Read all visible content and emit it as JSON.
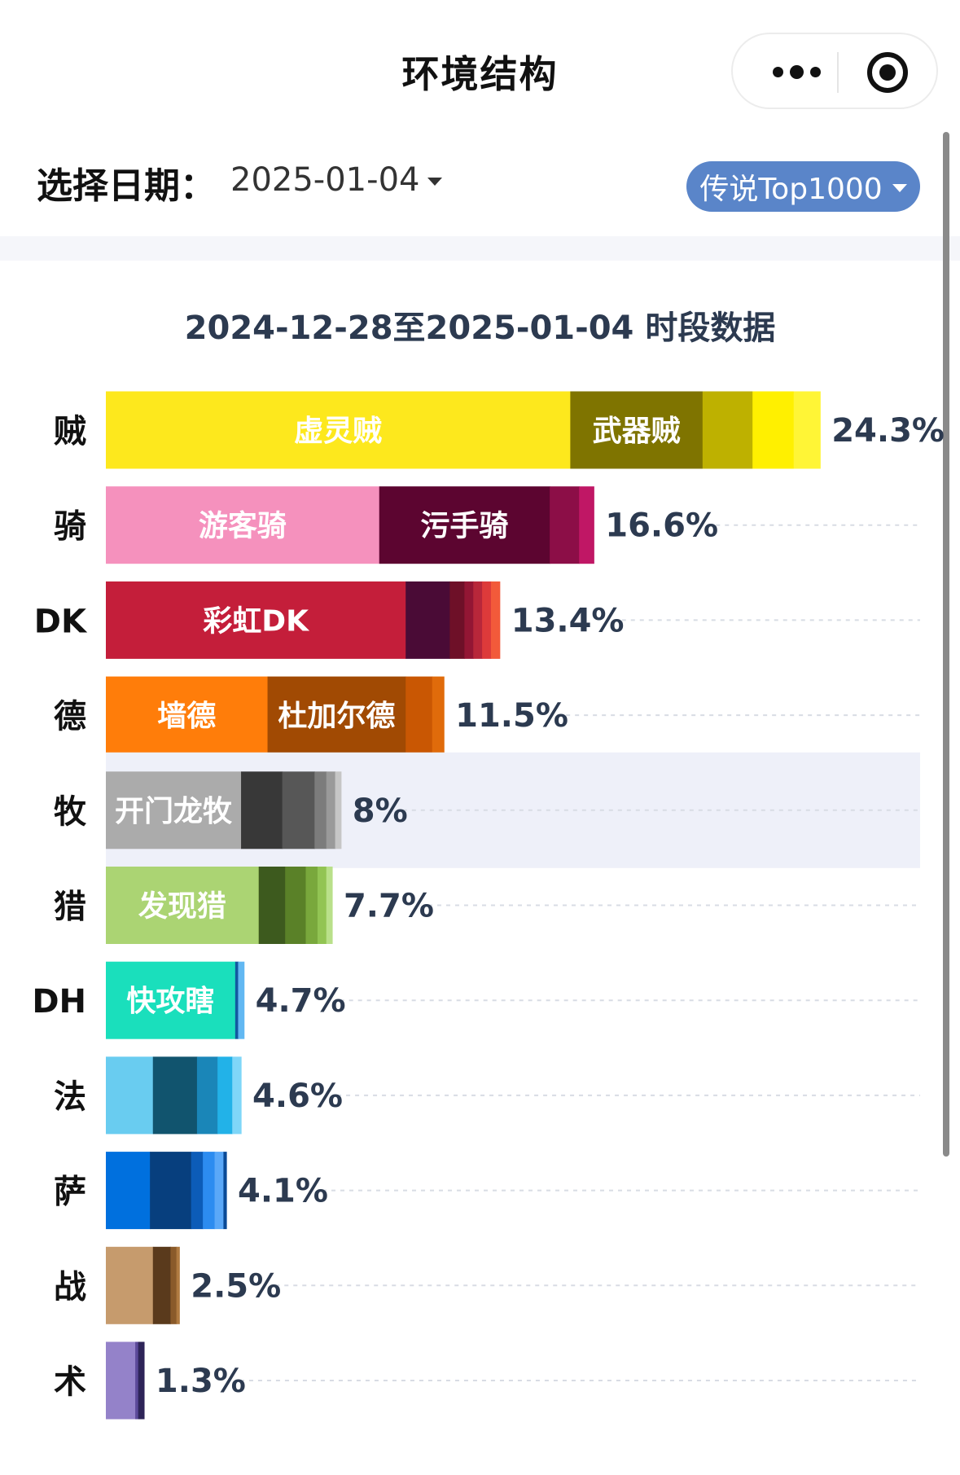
{
  "header": {
    "title": "环境结构"
  },
  "filters": {
    "date_label": "选择日期：",
    "date_value": "2025-01-04",
    "rank_label": "传说Top1000"
  },
  "chart_data": {
    "type": "bar",
    "stacked": true,
    "orientation": "horizontal",
    "title": "2024-12-28至2025-01-04 时段数据",
    "value_unit": "%",
    "highlighted_category": "牧",
    "grid": true,
    "categories": [
      "贼",
      "骑",
      "DK",
      "德",
      "牧",
      "猎",
      "DH",
      "法",
      "萨",
      "战",
      "术"
    ],
    "totals": [
      24.3,
      16.6,
      13.4,
      11.5,
      8,
      7.7,
      4.7,
      4.6,
      4.1,
      2.5,
      1.3
    ],
    "total_labels": [
      "24.3%",
      "16.6%",
      "13.4%",
      "11.5%",
      "8%",
      "7.7%",
      "4.7%",
      "4.6%",
      "4.1%",
      "2.5%",
      "1.3%"
    ],
    "bars": [
      {
        "segments": [
          {
            "label": "虚灵贼",
            "value": 15.8,
            "color": "#fde81d"
          },
          {
            "label": "武器贼",
            "value": 4.5,
            "color": "#7f7400"
          },
          {
            "label": "",
            "value": 1.7,
            "color": "#beb100"
          },
          {
            "label": "",
            "value": 1.4,
            "color": "#fff000"
          },
          {
            "label": "",
            "value": 0.9,
            "color": "#fff536"
          }
        ]
      },
      {
        "segments": [
          {
            "label": "游客骑",
            "value": 9.3,
            "color": "#f591bd"
          },
          {
            "label": "污手骑",
            "value": 5.8,
            "color": "#5c0530"
          },
          {
            "label": "",
            "value": 1.0,
            "color": "#8c0e47"
          },
          {
            "label": "",
            "value": 0.5,
            "color": "#c01765"
          }
        ]
      },
      {
        "segments": [
          {
            "label": "彩虹DK",
            "value": 10.2,
            "color": "#c41e3a"
          },
          {
            "label": "",
            "value": 1.5,
            "color": "#4a0b36"
          },
          {
            "label": "",
            "value": 0.5,
            "color": "#6e1028"
          },
          {
            "label": "",
            "value": 0.3,
            "color": "#931634"
          },
          {
            "label": "",
            "value": 0.3,
            "color": "#b8273a"
          },
          {
            "label": "",
            "value": 0.3,
            "color": "#dd3a3a"
          },
          {
            "label": "",
            "value": 0.3,
            "color": "#f25a3a"
          }
        ]
      },
      {
        "segments": [
          {
            "label": "墙德",
            "value": 5.5,
            "color": "#ff7d0a"
          },
          {
            "label": "杜加尔德",
            "value": 4.7,
            "color": "#a14a03"
          },
          {
            "label": "",
            "value": 0.9,
            "color": "#c95703"
          },
          {
            "label": "",
            "value": 0.4,
            "color": "#e06b0b"
          }
        ]
      },
      {
        "segments": [
          {
            "label": "开门龙牧",
            "value": 4.6,
            "color": "#ababab"
          },
          {
            "label": "",
            "value": 1.4,
            "color": "#383838"
          },
          {
            "label": "",
            "value": 1.1,
            "color": "#575757"
          },
          {
            "label": "",
            "value": 0.4,
            "color": "#7c7c7c"
          },
          {
            "label": "",
            "value": 0.3,
            "color": "#9a9a9a"
          },
          {
            "label": "",
            "value": 0.2,
            "color": "#c6c6c6"
          }
        ]
      },
      {
        "segments": [
          {
            "label": "发现猎",
            "value": 5.2,
            "color": "#abd473"
          },
          {
            "label": "",
            "value": 0.9,
            "color": "#3d5a1e"
          },
          {
            "label": "",
            "value": 0.7,
            "color": "#5a8128"
          },
          {
            "label": "",
            "value": 0.4,
            "color": "#79a83c"
          },
          {
            "label": "",
            "value": 0.3,
            "color": "#92c453"
          },
          {
            "label": "",
            "value": 0.2,
            "color": "#b9e08a"
          }
        ]
      },
      {
        "segments": [
          {
            "label": "快攻瞎",
            "value": 4.4,
            "color": "#1adfbc"
          },
          {
            "label": "",
            "value": 0.1,
            "color": "#1259a0"
          },
          {
            "label": "",
            "value": 0.2,
            "color": "#62b8f2"
          }
        ]
      },
      {
        "segments": [
          {
            "label": "",
            "value": 1.6,
            "color": "#69ccf0"
          },
          {
            "label": "",
            "value": 1.5,
            "color": "#11546e"
          },
          {
            "label": "",
            "value": 0.7,
            "color": "#1a86b8"
          },
          {
            "label": "",
            "value": 0.5,
            "color": "#22b2e8"
          },
          {
            "label": "",
            "value": 0.3,
            "color": "#7fd6f8"
          }
        ]
      },
      {
        "segments": [
          {
            "label": "",
            "value": 1.5,
            "color": "#0070de"
          },
          {
            "label": "",
            "value": 1.4,
            "color": "#073f7e"
          },
          {
            "label": "",
            "value": 0.4,
            "color": "#0c5cb8"
          },
          {
            "label": "",
            "value": 0.4,
            "color": "#2c8cf0"
          },
          {
            "label": "",
            "value": 0.3,
            "color": "#5aa8f8"
          },
          {
            "label": "",
            "value": 0.1,
            "color": "#0a4a96"
          }
        ]
      },
      {
        "segments": [
          {
            "label": "",
            "value": 1.6,
            "color": "#c69b6d"
          },
          {
            "label": "",
            "value": 0.6,
            "color": "#5a3a1c"
          },
          {
            "label": "",
            "value": 0.2,
            "color": "#8a5a2a"
          },
          {
            "label": "",
            "value": 0.1,
            "color": "#b07a40"
          }
        ]
      },
      {
        "segments": [
          {
            "label": "",
            "value": 1.0,
            "color": "#9482c9"
          },
          {
            "label": "",
            "value": 0.1,
            "color": "#5c4a9a"
          },
          {
            "label": "",
            "value": 0.2,
            "color": "#2e2458"
          }
        ]
      }
    ]
  }
}
